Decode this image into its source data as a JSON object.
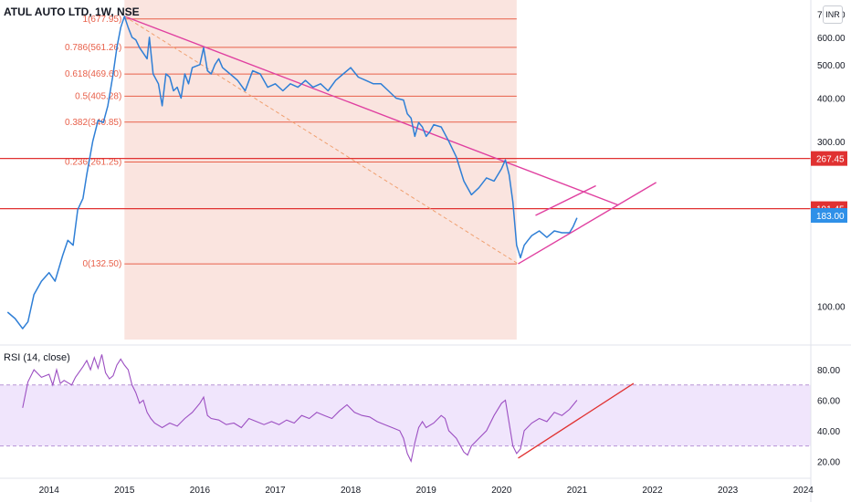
{
  "header": {
    "title": "ATUL AUTO LTD, 1W, NSE",
    "currency": "INR"
  },
  "rsi_panel": {
    "title": "RSI (14, close)"
  },
  "chart_data": [
    {
      "type": "line",
      "name": "price",
      "y_scale": "log",
      "ylim": [
        80,
        760
      ],
      "y_ticks": [
        "700.00",
        "600.00",
        "500.00",
        "400.00",
        "300.00",
        "100.00"
      ],
      "y_tick_values": [
        700,
        600,
        500,
        400,
        300,
        100
      ],
      "x_ticks": [
        "2014",
        "2015",
        "2016",
        "2017",
        "2018",
        "2019",
        "2020",
        "2021",
        "2022",
        "2023",
        "2024"
      ],
      "x_tick_values": [
        2014,
        2015,
        2016,
        2017,
        2018,
        2019,
        2020,
        2021,
        2022,
        2023,
        2024
      ],
      "xlim": [
        2013.35,
        2024.1
      ],
      "series": [
        {
          "color": "#2f7fd6",
          "points": [
            [
              2013.45,
              96
            ],
            [
              2013.55,
              92
            ],
            [
              2013.65,
              86
            ],
            [
              2013.72,
              90
            ],
            [
              2013.8,
              108
            ],
            [
              2013.9,
              118
            ],
            [
              2014.0,
              125
            ],
            [
              2014.08,
              118
            ],
            [
              2014.18,
              140
            ],
            [
              2014.25,
              155
            ],
            [
              2014.32,
              150
            ],
            [
              2014.38,
              190
            ],
            [
              2014.45,
              205
            ],
            [
              2014.5,
              240
            ],
            [
              2014.58,
              300
            ],
            [
              2014.65,
              345
            ],
            [
              2014.72,
              340
            ],
            [
              2014.78,
              380
            ],
            [
              2014.85,
              470
            ],
            [
              2014.9,
              560
            ],
            [
              2014.95,
              640
            ],
            [
              2015.0,
              690
            ],
            [
              2015.05,
              640
            ],
            [
              2015.1,
              600
            ],
            [
              2015.15,
              590
            ],
            [
              2015.2,
              560
            ],
            [
              2015.25,
              540
            ],
            [
              2015.3,
              520
            ],
            [
              2015.33,
              600
            ],
            [
              2015.38,
              470
            ],
            [
              2015.45,
              440
            ],
            [
              2015.5,
              380
            ],
            [
              2015.55,
              470
            ],
            [
              2015.6,
              460
            ],
            [
              2015.65,
              420
            ],
            [
              2015.7,
              430
            ],
            [
              2015.75,
              400
            ],
            [
              2015.8,
              470
            ],
            [
              2015.85,
              440
            ],
            [
              2015.9,
              490
            ],
            [
              2016.0,
              500
            ],
            [
              2016.05,
              560
            ],
            [
              2016.1,
              480
            ],
            [
              2016.15,
              470
            ],
            [
              2016.2,
              500
            ],
            [
              2016.25,
              520
            ],
            [
              2016.3,
              490
            ],
            [
              2016.35,
              480
            ],
            [
              2016.45,
              460
            ],
            [
              2016.5,
              450
            ],
            [
              2016.6,
              420
            ],
            [
              2016.7,
              480
            ],
            [
              2016.8,
              470
            ],
            [
              2016.9,
              430
            ],
            [
              2017.0,
              440
            ],
            [
              2017.1,
              420
            ],
            [
              2017.2,
              440
            ],
            [
              2017.3,
              430
            ],
            [
              2017.4,
              450
            ],
            [
              2017.5,
              430
            ],
            [
              2017.6,
              440
            ],
            [
              2017.7,
              420
            ],
            [
              2017.8,
              450
            ],
            [
              2017.9,
              470
            ],
            [
              2018.0,
              490
            ],
            [
              2018.1,
              460
            ],
            [
              2018.2,
              450
            ],
            [
              2018.3,
              440
            ],
            [
              2018.4,
              440
            ],
            [
              2018.5,
              420
            ],
            [
              2018.6,
              400
            ],
            [
              2018.7,
              395
            ],
            [
              2018.75,
              360
            ],
            [
              2018.8,
              350
            ],
            [
              2018.85,
              310
            ],
            [
              2018.9,
              340
            ],
            [
              2018.95,
              330
            ],
            [
              2019.0,
              310
            ],
            [
              2019.05,
              320
            ],
            [
              2019.1,
              335
            ],
            [
              2019.2,
              330
            ],
            [
              2019.3,
              300
            ],
            [
              2019.4,
              270
            ],
            [
              2019.5,
              230
            ],
            [
              2019.6,
              210
            ],
            [
              2019.7,
              220
            ],
            [
              2019.8,
              235
            ],
            [
              2019.9,
              230
            ],
            [
              2020.0,
              250
            ],
            [
              2020.05,
              265
            ],
            [
              2020.1,
              240
            ],
            [
              2020.15,
              200
            ],
            [
              2020.2,
              150
            ],
            [
              2020.25,
              138
            ],
            [
              2020.3,
              150
            ],
            [
              2020.35,
              155
            ],
            [
              2020.4,
              160
            ],
            [
              2020.5,
              165
            ],
            [
              2020.6,
              158
            ],
            [
              2020.7,
              165
            ],
            [
              2020.8,
              163
            ],
            [
              2020.9,
              163
            ],
            [
              2020.95,
              170
            ],
            [
              2021.0,
              180
            ]
          ]
        }
      ],
      "fibonacci": {
        "levels": [
          {
            "label": "1(677.95)",
            "value": 677.95
          },
          {
            "label": "0.786(561.26)",
            "value": 561.26
          },
          {
            "label": "0.618(469.60)",
            "value": 469.6
          },
          {
            "label": "0.5(405.28)",
            "value": 405.28
          },
          {
            "label": "0.382(340.85)",
            "value": 340.85
          },
          {
            "label": "0.236(261.25)",
            "value": 261.25
          },
          {
            "label": "0(132.50)",
            "value": 132.5
          }
        ],
        "from_x": 2015.0,
        "to_x": 2020.2,
        "line_color": "#e8604a",
        "fill_color": "#f9e1dc"
      },
      "horizontal_lines": [
        {
          "label": "267.45",
          "value": 267.45,
          "color": "#e03131",
          "style": "solid"
        },
        {
          "label": "191.45",
          "value": 191.45,
          "color": "#e03131",
          "style": "solid"
        }
      ],
      "price_labels": [
        {
          "label": "183.00",
          "value": 183.0,
          "color": "#2f90e8"
        }
      ],
      "trendlines": [
        {
          "color": "#e040a0",
          "points": [
            [
              2015.0,
              690
            ],
            [
              2021.55,
              196
            ]
          ]
        },
        {
          "color": "#e040a0",
          "points": [
            [
              2020.22,
              132.5
            ],
            [
              2022.05,
              228
            ]
          ]
        },
        {
          "color": "#e040a0",
          "points": [
            [
              2020.45,
              183
            ],
            [
              2021.25,
              223
            ]
          ]
        },
        {
          "color": "#f0a070",
          "style": "dashed",
          "points": [
            [
              2015.0,
              690
            ],
            [
              2020.22,
              132.5
            ]
          ]
        }
      ]
    },
    {
      "type": "line",
      "name": "RSI",
      "ylim": [
        10,
        95
      ],
      "y_ticks": [
        "80.00",
        "60.00",
        "40.00",
        "20.00"
      ],
      "y_tick_values": [
        80,
        60,
        40,
        20
      ],
      "xlim": [
        2013.35,
        2024.1
      ],
      "band": [
        30,
        70
      ],
      "series": [
        {
          "color": "#9c4fc2",
          "points": [
            [
              2013.65,
              55
            ],
            [
              2013.72,
              72
            ],
            [
              2013.8,
              80
            ],
            [
              2013.9,
              75
            ],
            [
              2014.0,
              77
            ],
            [
              2014.05,
              70
            ],
            [
              2014.1,
              80
            ],
            [
              2014.15,
              71
            ],
            [
              2014.2,
              73
            ],
            [
              2014.3,
              70
            ],
            [
              2014.35,
              75
            ],
            [
              2014.45,
              82
            ],
            [
              2014.5,
              86
            ],
            [
              2014.55,
              80
            ],
            [
              2014.6,
              88
            ],
            [
              2014.65,
              81
            ],
            [
              2014.7,
              90
            ],
            [
              2014.75,
              78
            ],
            [
              2014.8,
              74
            ],
            [
              2014.85,
              76
            ],
            [
              2014.9,
              83
            ],
            [
              2014.95,
              87
            ],
            [
              2015.0,
              83
            ],
            [
              2015.05,
              80
            ],
            [
              2015.1,
              70
            ],
            [
              2015.15,
              65
            ],
            [
              2015.2,
              58
            ],
            [
              2015.25,
              60
            ],
            [
              2015.3,
              52
            ],
            [
              2015.35,
              48
            ],
            [
              2015.4,
              45
            ],
            [
              2015.5,
              42
            ],
            [
              2015.6,
              45
            ],
            [
              2015.7,
              43
            ],
            [
              2015.8,
              48
            ],
            [
              2015.9,
              52
            ],
            [
              2016.0,
              58
            ],
            [
              2016.05,
              62
            ],
            [
              2016.1,
              50
            ],
            [
              2016.15,
              48
            ],
            [
              2016.25,
              47
            ],
            [
              2016.35,
              44
            ],
            [
              2016.45,
              45
            ],
            [
              2016.55,
              42
            ],
            [
              2016.65,
              48
            ],
            [
              2016.75,
              46
            ],
            [
              2016.85,
              44
            ],
            [
              2016.95,
              46
            ],
            [
              2017.05,
              44
            ],
            [
              2017.15,
              47
            ],
            [
              2017.25,
              45
            ],
            [
              2017.35,
              50
            ],
            [
              2017.45,
              48
            ],
            [
              2017.55,
              52
            ],
            [
              2017.65,
              50
            ],
            [
              2017.75,
              48
            ],
            [
              2017.85,
              53
            ],
            [
              2017.95,
              57
            ],
            [
              2018.05,
              52
            ],
            [
              2018.15,
              50
            ],
            [
              2018.25,
              49
            ],
            [
              2018.35,
              46
            ],
            [
              2018.45,
              44
            ],
            [
              2018.55,
              42
            ],
            [
              2018.65,
              40
            ],
            [
              2018.7,
              35
            ],
            [
              2018.75,
              25
            ],
            [
              2018.8,
              20
            ],
            [
              2018.85,
              32
            ],
            [
              2018.9,
              42
            ],
            [
              2018.95,
              46
            ],
            [
              2019.0,
              42
            ],
            [
              2019.1,
              45
            ],
            [
              2019.2,
              50
            ],
            [
              2019.25,
              48
            ],
            [
              2019.3,
              40
            ],
            [
              2019.4,
              35
            ],
            [
              2019.5,
              26
            ],
            [
              2019.55,
              24
            ],
            [
              2019.6,
              30
            ],
            [
              2019.7,
              35
            ],
            [
              2019.8,
              40
            ],
            [
              2019.9,
              50
            ],
            [
              2020.0,
              58
            ],
            [
              2020.05,
              60
            ],
            [
              2020.1,
              45
            ],
            [
              2020.15,
              30
            ],
            [
              2020.2,
              25
            ],
            [
              2020.25,
              28
            ],
            [
              2020.3,
              40
            ],
            [
              2020.4,
              45
            ],
            [
              2020.5,
              48
            ],
            [
              2020.6,
              46
            ],
            [
              2020.7,
              52
            ],
            [
              2020.8,
              50
            ],
            [
              2020.9,
              54
            ],
            [
              2020.95,
              57
            ],
            [
              2021.0,
              60
            ]
          ]
        }
      ],
      "trendlines": [
        {
          "color": "#e03131",
          "points": [
            [
              2020.22,
              22
            ],
            [
              2021.75,
              71
            ]
          ]
        }
      ]
    }
  ]
}
